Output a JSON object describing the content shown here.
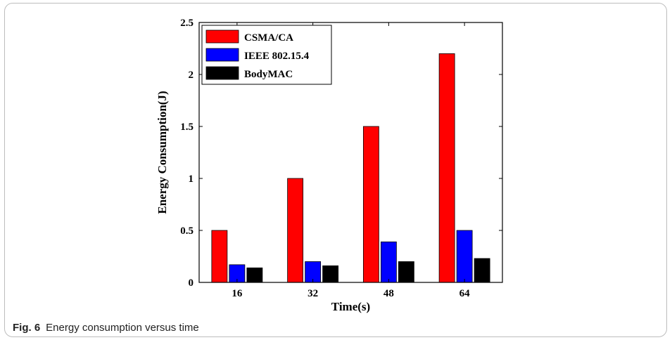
{
  "caption": {
    "fig_label": "Fig. 6",
    "text": "Energy consumption versus time"
  },
  "chart_data": {
    "type": "bar",
    "categories": [
      "16",
      "32",
      "48",
      "64"
    ],
    "series": [
      {
        "name": "CSMA/CA",
        "values": [
          0.5,
          1.0,
          1.5,
          2.2
        ],
        "color": "#ff0000"
      },
      {
        "name": "IEEE 802.15.4",
        "values": [
          0.17,
          0.2,
          0.39,
          0.5
        ],
        "color": "#0000ff"
      },
      {
        "name": "BodyMAC",
        "values": [
          0.14,
          0.16,
          0.2,
          0.23
        ],
        "color": "#000000"
      }
    ],
    "xlabel": "Time(s)",
    "ylabel": "Energy Consumption(J)",
    "ylim": [
      0,
      2.5
    ],
    "yticks": [
      "0",
      "0.5",
      "1",
      "1.5",
      "2",
      "2.5"
    ],
    "grid": false,
    "legend_position": "top-left"
  }
}
